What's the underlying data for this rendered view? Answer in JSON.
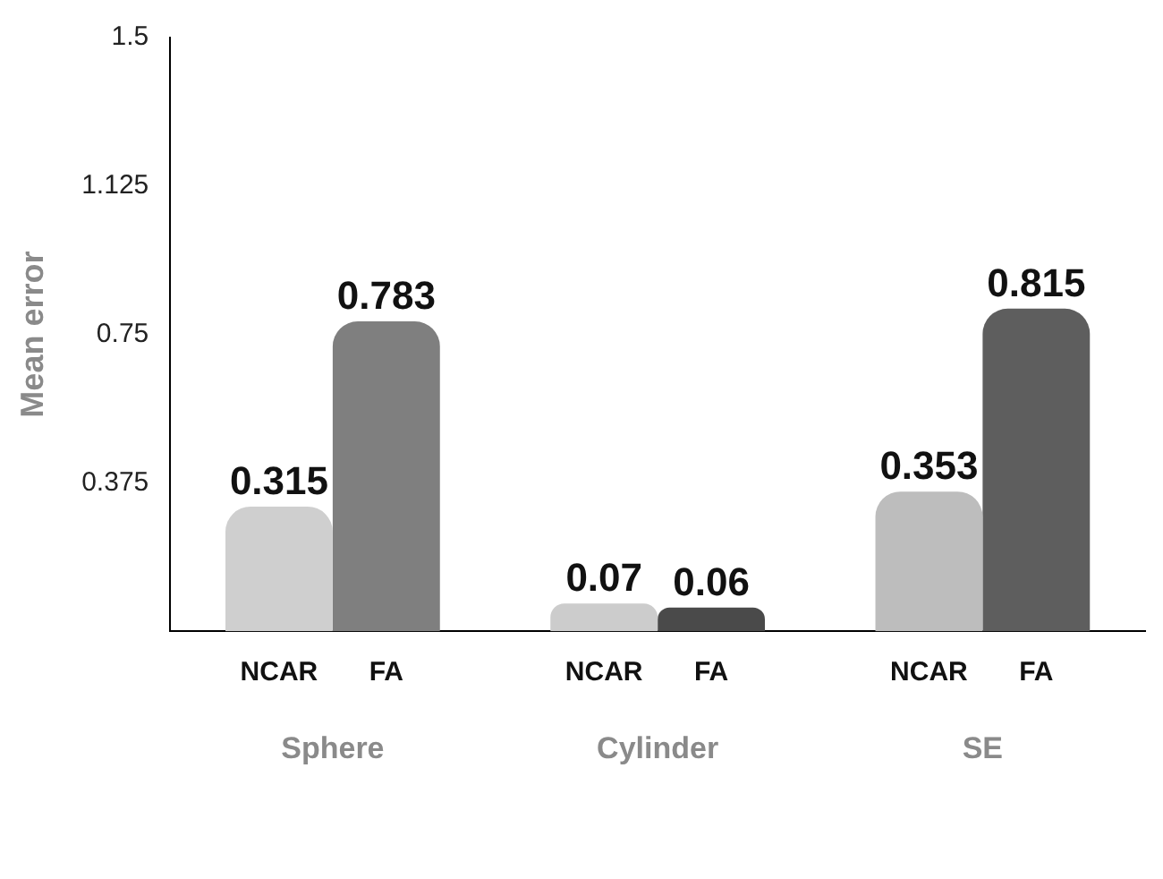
{
  "chart_data": {
    "type": "bar",
    "ylabel": "Mean error",
    "categories": [
      "Sphere",
      "Cylinder",
      "SE"
    ],
    "series": [
      {
        "name": "NCAR",
        "colors": [
          "#cfcfcf",
          "#cccccc",
          "#bdbdbd"
        ],
        "values": [
          0.315,
          0.07,
          0.353
        ]
      },
      {
        "name": "FA",
        "colors": [
          "#7f7f7f",
          "#4a4a4a",
          "#5e5e5e"
        ],
        "values": [
          0.783,
          0.06,
          0.815
        ]
      }
    ],
    "ylim": [
      0,
      1.5
    ],
    "yticks": [
      0.375,
      0.75,
      1.125,
      1.5
    ],
    "grid": false,
    "legend": false,
    "data_labels": true
  }
}
